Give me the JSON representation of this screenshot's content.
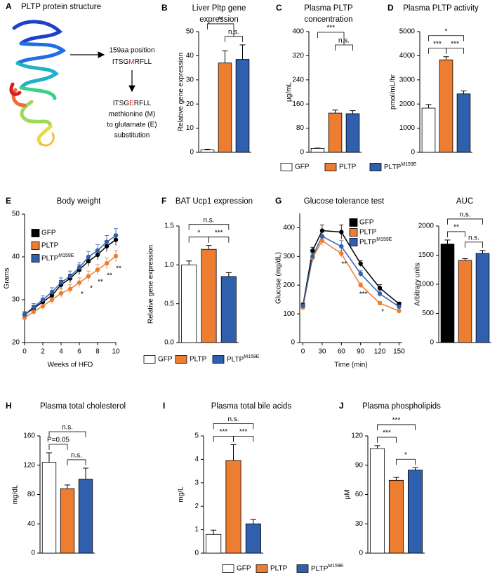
{
  "protein_panel": {
    "label": "A",
    "title": "PLTP protein structure",
    "position_text": "159aa position",
    "wild_type_sequence": [
      "ITSG",
      "M",
      "RFLL"
    ],
    "mutant_sequence": [
      "ITSG",
      "E",
      "RFLL"
    ],
    "description": [
      "methionine (M)",
      "to glutamate (E)",
      "substitution"
    ]
  },
  "chart_data": [
    {
      "panel": "B",
      "type": "bar",
      "title": [
        "Liver Pltp gene",
        "expression"
      ],
      "y_label": "Relative gene expression",
      "categories": [
        "GFP",
        "PLTP",
        {
          "name": "PLTP",
          "superscript": "M159E"
        }
      ],
      "colors": [
        "#ffffff",
        "#ed7d31",
        "#2f5fad"
      ],
      "values": [
        1,
        37,
        38.5
      ],
      "errors": [
        0.3,
        5,
        6
      ],
      "ylim": [
        0,
        50
      ],
      "yticks": [
        0,
        10,
        20,
        30,
        40,
        50
      ],
      "significance": [
        {
          "text": "n.s.",
          "between": [
            1,
            2
          ]
        },
        {
          "text": "**",
          "between": [
            0,
            1,
            2
          ]
        }
      ]
    },
    {
      "panel": "C",
      "type": "bar",
      "title": [
        "Plasma PLTP",
        "concentration"
      ],
      "y_label": "µg/mL",
      "categories": [
        "GFP",
        "PLTP",
        {
          "name": "PLTP",
          "superscript": "M159E"
        }
      ],
      "colors": [
        "#ffffff",
        "#ed7d31",
        "#2f5fad"
      ],
      "values": [
        13,
        130,
        128
      ],
      "errors": [
        1,
        10,
        10
      ],
      "ylim": [
        0,
        400
      ],
      "yticks": [
        0,
        80,
        160,
        240,
        320,
        400
      ],
      "significance": [
        {
          "text": "n.s.",
          "between": [
            1,
            2
          ]
        },
        {
          "text": "***",
          "between": [
            0,
            1,
            2
          ]
        }
      ],
      "legend": "below"
    },
    {
      "panel": "D",
      "type": "bar",
      "title": [
        "Plasma PLTP activity"
      ],
      "y_label": "pmol/mL/hr",
      "categories": [
        "GFP",
        "PLTP",
        {
          "name": "PLTP",
          "superscript": "M159E"
        }
      ],
      "colors": [
        "#ffffff",
        "#ed7d31",
        "#2f5fad"
      ],
      "values": [
        1830,
        3830,
        2420
      ],
      "errors": [
        150,
        130,
        120
      ],
      "ylim": [
        0,
        5000
      ],
      "yticks": [
        0,
        1000,
        2000,
        3000,
        4000,
        5000
      ],
      "significance": [
        {
          "text": "***",
          "between": [
            0,
            1
          ]
        },
        {
          "text": "***",
          "between": [
            1,
            2
          ]
        },
        {
          "text": "*",
          "between": [
            0,
            2
          ]
        }
      ]
    },
    {
      "panel": "E",
      "type": "line",
      "title": [
        "Body weight"
      ],
      "y_label": "Grams",
      "x_label": "Weeks of HFD",
      "x": [
        0,
        1,
        2,
        3,
        4,
        5,
        6,
        7,
        8,
        9,
        10
      ],
      "xlim": [
        0,
        10
      ],
      "xticks": [
        0,
        2,
        4,
        6,
        8,
        10
      ],
      "ylim": [
        20,
        50
      ],
      "yticks": [
        20,
        30,
        40,
        50
      ],
      "legend": "upper left",
      "series": [
        {
          "name": "GFP",
          "color": "#000000",
          "values": [
            26.5,
            28,
            29.5,
            31,
            33.5,
            35,
            37,
            39,
            40.5,
            42.5,
            44
          ],
          "errors": [
            0.6,
            0.7,
            0.8,
            0.9,
            1,
            1,
            1.1,
            1.2,
            1.2,
            1.3,
            1.3
          ]
        },
        {
          "name": "PLTP",
          "color": "#ed7d31",
          "values": [
            25.8,
            27.2,
            28.5,
            30,
            31.5,
            32.5,
            34,
            35.5,
            37,
            38.5,
            40.2
          ],
          "errors": [
            0.6,
            0.7,
            0.8,
            0.9,
            1,
            1,
            1.1,
            1.2,
            1.2,
            1.3,
            1.3
          ]
        },
        {
          "name": {
            "name": "PLTP",
            "superscript": "M159E"
          },
          "color": "#2f5fad",
          "values": [
            26.5,
            28.3,
            30,
            31.8,
            34,
            35.5,
            37.5,
            40,
            41.5,
            43.5,
            45
          ],
          "errors": [
            0.7,
            0.8,
            0.9,
            1,
            1.1,
            1.2,
            1.2,
            1.3,
            1.4,
            1.5,
            1.6
          ]
        }
      ],
      "annotations": [
        {
          "text": "*",
          "x": 6
        },
        {
          "text": "*",
          "x": 7
        },
        {
          "text": "**",
          "x": 8
        },
        {
          "text": "**",
          "x": 9
        },
        {
          "text": "**",
          "x": 10
        }
      ]
    },
    {
      "panel": "F",
      "type": "bar",
      "title": [
        "BAT Ucp1 expression"
      ],
      "y_label": "Relative gene expression",
      "categories": [
        "GFP",
        "PLTP",
        {
          "name": "PLTP",
          "superscript": "M159E"
        }
      ],
      "colors": [
        "#ffffff",
        "#ed7d31",
        "#2f5fad"
      ],
      "values": [
        1.0,
        1.2,
        0.85
      ],
      "errors": [
        0.05,
        0.05,
        0.05
      ],
      "ylim": [
        0,
        1.5
      ],
      "yticks": [
        {
          "value": 0,
          "label": "0.0"
        },
        0.5,
        {
          "value": 1,
          "label": "1.0"
        },
        1.5
      ],
      "significance": [
        {
          "text": "*",
          "between": [
            0,
            1
          ]
        },
        {
          "text": "***",
          "between": [
            1,
            2
          ]
        },
        {
          "text": "n.s.",
          "between": [
            0,
            2
          ]
        }
      ],
      "legend": "below"
    },
    {
      "panel": "G",
      "type": "line",
      "title": [
        "Glucose tolerance test"
      ],
      "y_label": "Glucose (mg/dL)",
      "x_label": "Time (min)",
      "x": [
        0,
        15,
        30,
        60,
        90,
        120,
        150
      ],
      "xlim": [
        -5,
        155
      ],
      "xticks": [
        0,
        30,
        60,
        90,
        120,
        150
      ],
      "ylim": [
        0,
        450
      ],
      "yticks": [
        0,
        100,
        200,
        300,
        400
      ],
      "legend": "upper right",
      "series": [
        {
          "name": "GFP",
          "color": "#000000",
          "values": [
            130,
            320,
            390,
            385,
            275,
            190,
            135
          ],
          "errors": [
            8,
            12,
            20,
            25,
            10,
            12,
            6
          ]
        },
        {
          "name": "PLTP",
          "color": "#ed7d31",
          "values": [
            122,
            295,
            355,
            310,
            200,
            137,
            110
          ],
          "errors": [
            8,
            15,
            18,
            12,
            8,
            6,
            5
          ]
        },
        {
          "name": {
            "name": "PLTP",
            "superscript": "M159E"
          },
          "color": "#2f5fad",
          "values": [
            128,
            300,
            370,
            335,
            240,
            170,
            125
          ],
          "errors": [
            8,
            15,
            15,
            20,
            10,
            10,
            6
          ]
        }
      ],
      "annotations": [
        {
          "text": "**",
          "x": 60
        },
        {
          "text": "***",
          "x": 90
        },
        {
          "text": "*",
          "x": 120
        }
      ]
    },
    {
      "type": "bar",
      "title": [
        "AUC"
      ],
      "y_label": "Arbitrary units",
      "categories": [
        "GFP",
        "PLTP",
        {
          "name": "PLTP",
          "superscript": "M159E"
        }
      ],
      "colors": [
        "#000000",
        "#ed7d31",
        "#2f5fad"
      ],
      "values": [
        1690,
        1410,
        1530
      ],
      "errors": [
        70,
        30,
        50
      ],
      "ylim": [
        0,
        2000
      ],
      "yticks": [
        0,
        500,
        1000,
        1500,
        2000
      ],
      "significance": [
        {
          "text": "**",
          "between": [
            0,
            1
          ]
        },
        {
          "text": "n.s.",
          "between": [
            1,
            2
          ]
        },
        {
          "text": "n.s.",
          "between": [
            0,
            2
          ]
        }
      ]
    },
    {
      "panel": "H",
      "type": "bar",
      "title": [
        "Plasma total cholesterol"
      ],
      "y_label": "mg/dL",
      "categories": [
        "GFP",
        "PLTP",
        {
          "name": "PLTP",
          "superscript": "M159E"
        }
      ],
      "colors": [
        "#ffffff",
        "#ed7d31",
        "#2f5fad"
      ],
      "values": [
        124,
        88,
        101
      ],
      "errors": [
        13,
        5,
        15
      ],
      "ylim": [
        0,
        160
      ],
      "yticks": [
        0,
        40,
        80,
        120,
        160
      ],
      "significance": [
        {
          "text": "P=0.05",
          "between": [
            0,
            1
          ]
        },
        {
          "text": "n.s.",
          "between": [
            1,
            2
          ]
        },
        {
          "text": "n.s.",
          "between": [
            0,
            2
          ]
        }
      ]
    },
    {
      "panel": "I",
      "type": "bar",
      "title": [
        "Plasma total bile acids"
      ],
      "y_label": "mg/L",
      "categories": [
        "GFP",
        "PLTP",
        {
          "name": "PLTP",
          "superscript": "M159E"
        }
      ],
      "colors": [
        "#ffffff",
        "#ed7d31",
        "#2f5fad"
      ],
      "values": [
        0.8,
        3.95,
        1.25
      ],
      "errors": [
        0.18,
        0.68,
        0.18
      ],
      "ylim": [
        0,
        5
      ],
      "yticks": [
        0,
        1,
        2,
        3,
        4,
        5
      ],
      "significance": [
        {
          "text": "***",
          "between": [
            0,
            1
          ]
        },
        {
          "text": "***",
          "between": [
            1,
            2
          ]
        },
        {
          "text": "n.s.",
          "between": [
            0,
            2
          ]
        }
      ],
      "legend": "below"
    },
    {
      "panel": "J",
      "type": "bar",
      "title": [
        "Plasma phospholipids"
      ],
      "y_label": "µM",
      "categories": [
        "GFP",
        "PLTP",
        {
          "name": "PLTP",
          "superscript": "M159E"
        }
      ],
      "colors": [
        "#ffffff",
        "#ed7d31",
        "#2f5fad"
      ],
      "values": [
        107,
        74.5,
        85
      ],
      "errors": [
        3,
        3,
        2.5
      ],
      "ylim": [
        0,
        120
      ],
      "yticks": [
        0,
        30,
        60,
        90,
        120
      ],
      "significance": [
        {
          "text": "***",
          "between": [
            0,
            1
          ]
        },
        {
          "text": "*",
          "between": [
            1,
            2
          ]
        },
        {
          "text": "***",
          "between": [
            0,
            2
          ]
        }
      ]
    }
  ]
}
